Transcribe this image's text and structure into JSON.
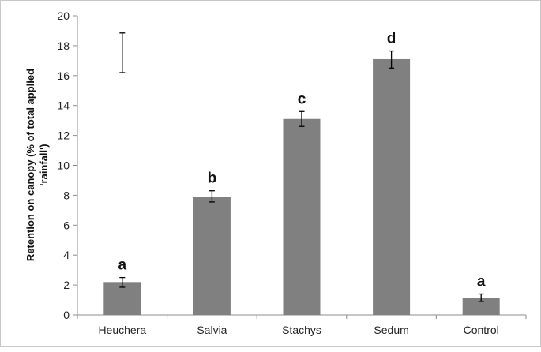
{
  "chart_data": {
    "type": "bar",
    "categories": [
      "Heuchera",
      "Salvia",
      "Stachys",
      "Sedum",
      "Control"
    ],
    "values": [
      2.2,
      7.9,
      13.1,
      17.1,
      1.15
    ],
    "error_low": [
      1.85,
      7.55,
      12.6,
      16.5,
      0.9
    ],
    "error_high": [
      2.5,
      8.3,
      13.6,
      17.65,
      1.4
    ],
    "significance_letters": [
      "a",
      "b",
      "c",
      "d",
      "a"
    ],
    "extra_error_bar": {
      "category": "Heuchera",
      "low": 16.2,
      "high": 18.85
    },
    "ylabel_lines": [
      "Retention on canopy (% of total applied",
      "'rainfall')"
    ],
    "xlabel": "",
    "ylim": [
      0,
      20
    ],
    "yticks": [
      0,
      2,
      4,
      6,
      8,
      10,
      12,
      14,
      16,
      18,
      20
    ],
    "bar_color": "#808080",
    "grid": false
  }
}
